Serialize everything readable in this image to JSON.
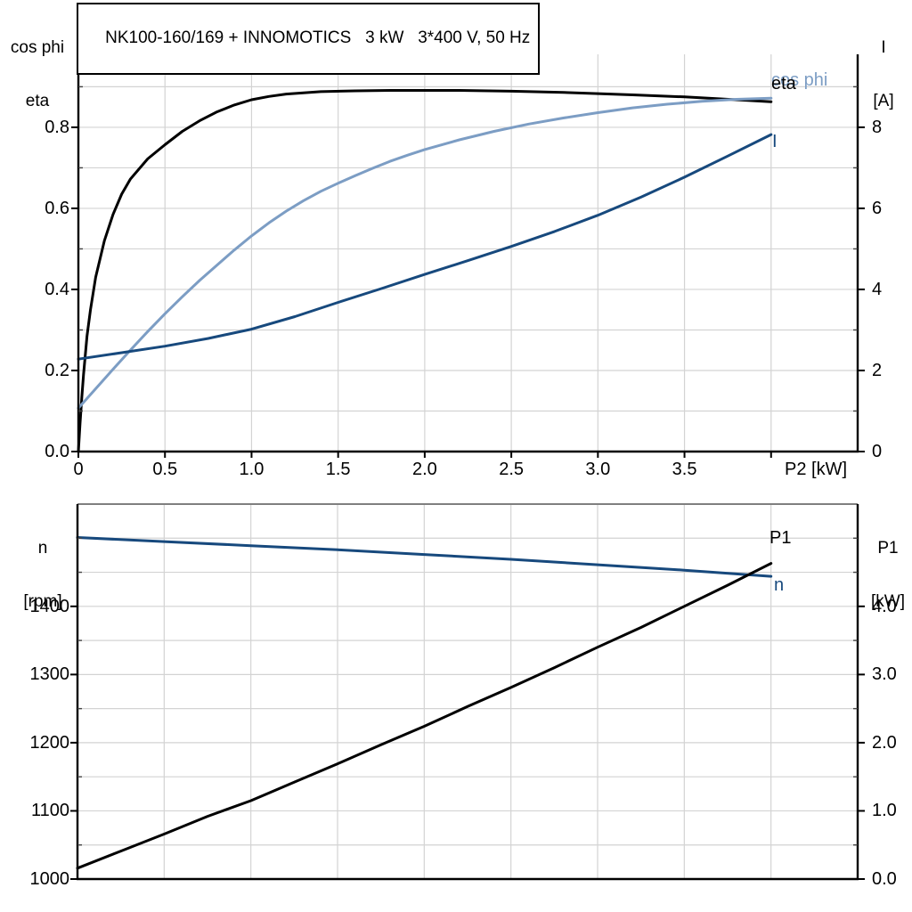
{
  "title": "NK100-160/169 + INNOMOTICS   3 kW   3*400 V, 50 Hz",
  "colors": {
    "eta_curve": "#000000",
    "cos_phi_curve": "#7C9DC4",
    "current_curve": "#17497D",
    "speed_curve": "#17497D",
    "p1_curve": "#000000",
    "gridline": "#D3D3D3",
    "axis": "#000000",
    "bottom_chart_top_border": "#7F7F7F"
  },
  "chart_data": [
    {
      "id": "top",
      "type": "line",
      "title": "NK100-160/169 + INNOMOTICS   3 kW   3*400 V, 50 Hz",
      "xlabel": "P2 [kW]",
      "x": {
        "min": 0,
        "max": 4.5,
        "grid_step": 0.5,
        "show_ticks": true,
        "major_ticks": [
          {
            "v": 0,
            "label": "0"
          },
          {
            "v": 0.5,
            "label": "0.5"
          },
          {
            "v": 1.0,
            "label": "1.0"
          },
          {
            "v": 1.5,
            "label": "1.5"
          },
          {
            "v": 2.0,
            "label": "2.0"
          },
          {
            "v": 2.5,
            "label": "2.5"
          },
          {
            "v": 3.0,
            "label": "3.0"
          },
          {
            "v": 3.5,
            "label": "3.5"
          },
          {
            "v": 4.0,
            "label": ""
          }
        ]
      },
      "left_axis": {
        "unit_lines": [
          "cos phi",
          "eta"
        ],
        "min": 0,
        "max": 0.98,
        "grid_step": 0.1,
        "major_ticks": [
          {
            "v": 0.0,
            "label": "0.0"
          },
          {
            "v": 0.2,
            "label": "0.2"
          },
          {
            "v": 0.4,
            "label": "0.4"
          },
          {
            "v": 0.6,
            "label": "0.6"
          },
          {
            "v": 0.8,
            "label": "0.8"
          }
        ],
        "minor_ticks": [
          0.1,
          0.3,
          0.5,
          0.7,
          0.9
        ]
      },
      "right_axis": {
        "unit_lines": [
          "I",
          "[A]"
        ],
        "min": 0,
        "max": 9.8,
        "major_ticks": [
          {
            "v": 0,
            "label": "0"
          },
          {
            "v": 2,
            "label": "2"
          },
          {
            "v": 4,
            "label": "4"
          },
          {
            "v": 6,
            "label": "6"
          },
          {
            "v": 8,
            "label": "8"
          }
        ],
        "minor_ticks": [
          1,
          3,
          5,
          7,
          9
        ]
      },
      "series": [
        {
          "name": "eta",
          "label": "eta",
          "axis": "left",
          "color": "#000000",
          "points": [
            [
              0,
              0
            ],
            [
              0.01,
              0.07
            ],
            [
              0.02,
              0.135
            ],
            [
              0.03,
              0.19
            ],
            [
              0.05,
              0.285
            ],
            [
              0.07,
              0.35
            ],
            [
              0.1,
              0.43
            ],
            [
              0.15,
              0.52
            ],
            [
              0.2,
              0.585
            ],
            [
              0.25,
              0.635
            ],
            [
              0.3,
              0.672
            ],
            [
              0.4,
              0.722
            ],
            [
              0.5,
              0.757
            ],
            [
              0.6,
              0.79
            ],
            [
              0.7,
              0.816
            ],
            [
              0.8,
              0.838
            ],
            [
              0.9,
              0.855
            ],
            [
              1.0,
              0.868
            ],
            [
              1.1,
              0.876
            ],
            [
              1.2,
              0.882
            ],
            [
              1.4,
              0.888
            ],
            [
              1.6,
              0.89
            ],
            [
              1.8,
              0.891
            ],
            [
              2.0,
              0.891
            ],
            [
              2.2,
              0.891
            ],
            [
              2.5,
              0.889
            ],
            [
              2.8,
              0.886
            ],
            [
              3.0,
              0.883
            ],
            [
              3.2,
              0.88
            ],
            [
              3.5,
              0.875
            ],
            [
              3.8,
              0.868
            ],
            [
              4.0,
              0.863
            ]
          ]
        },
        {
          "name": "cos phi",
          "label": "cos phi",
          "axis": "left",
          "color": "#7C9DC4",
          "points": [
            [
              0,
              0.107
            ],
            [
              0.1,
              0.155
            ],
            [
              0.2,
              0.203
            ],
            [
              0.3,
              0.25
            ],
            [
              0.4,
              0.296
            ],
            [
              0.5,
              0.34
            ],
            [
              0.6,
              0.382
            ],
            [
              0.7,
              0.422
            ],
            [
              0.8,
              0.46
            ],
            [
              0.9,
              0.497
            ],
            [
              1.0,
              0.532
            ],
            [
              1.1,
              0.564
            ],
            [
              1.2,
              0.593
            ],
            [
              1.3,
              0.619
            ],
            [
              1.4,
              0.642
            ],
            [
              1.5,
              0.662
            ],
            [
              1.6,
              0.681
            ],
            [
              1.7,
              0.699
            ],
            [
              1.8,
              0.716
            ],
            [
              1.9,
              0.731
            ],
            [
              2.0,
              0.745
            ],
            [
              2.2,
              0.769
            ],
            [
              2.4,
              0.79
            ],
            [
              2.6,
              0.808
            ],
            [
              2.8,
              0.823
            ],
            [
              3.0,
              0.836
            ],
            [
              3.2,
              0.848
            ],
            [
              3.4,
              0.857
            ],
            [
              3.6,
              0.864
            ],
            [
              3.8,
              0.869
            ],
            [
              4.0,
              0.872
            ]
          ]
        },
        {
          "name": "I",
          "label": "I",
          "axis": "right",
          "color": "#17497D",
          "points": [
            [
              0,
              2.28
            ],
            [
              0.25,
              2.44
            ],
            [
              0.5,
              2.6
            ],
            [
              0.75,
              2.79
            ],
            [
              1.0,
              3.02
            ],
            [
              1.25,
              3.33
            ],
            [
              1.5,
              3.68
            ],
            [
              1.75,
              4.02
            ],
            [
              2.0,
              4.37
            ],
            [
              2.25,
              4.71
            ],
            [
              2.5,
              5.06
            ],
            [
              2.75,
              5.43
            ],
            [
              3.0,
              5.83
            ],
            [
              3.25,
              6.28
            ],
            [
              3.5,
              6.77
            ],
            [
              3.75,
              7.29
            ],
            [
              4.0,
              7.82
            ]
          ]
        }
      ]
    },
    {
      "id": "bottom",
      "type": "line",
      "title": "",
      "xlabel": "",
      "x": {
        "min": 0,
        "max": 4.5,
        "grid_step": 0.5,
        "show_ticks": false,
        "major_ticks": []
      },
      "left_axis": {
        "unit_lines": [
          "n",
          "[rpm]"
        ],
        "min": 1000,
        "max": 1550,
        "grid_step": 50,
        "major_ticks": [
          {
            "v": 1000,
            "label": "1000"
          },
          {
            "v": 1100,
            "label": "1100"
          },
          {
            "v": 1200,
            "label": "1200"
          },
          {
            "v": 1300,
            "label": "1300"
          },
          {
            "v": 1400,
            "label": "1400"
          }
        ],
        "minor_ticks": [
          1050,
          1150,
          1250,
          1350,
          1450,
          1500
        ]
      },
      "right_axis": {
        "unit_lines": [
          "P1",
          "[kW]"
        ],
        "min": 0,
        "max": 5.5,
        "major_ticks": [
          {
            "v": 0,
            "label": "0.0"
          },
          {
            "v": 1,
            "label": "1.0"
          },
          {
            "v": 2,
            "label": "2.0"
          },
          {
            "v": 3,
            "label": "3.0"
          },
          {
            "v": 4,
            "label": "4.0"
          }
        ],
        "minor_ticks": [
          0.5,
          1.5,
          2.5,
          3.5,
          4.5,
          5.0
        ]
      },
      "series": [
        {
          "name": "n",
          "label": "n",
          "axis": "left",
          "color": "#17497D",
          "points": [
            [
              0,
              1501
            ],
            [
              0.5,
              1495
            ],
            [
              1.0,
              1489
            ],
            [
              1.5,
              1483
            ],
            [
              2.0,
              1476
            ],
            [
              2.5,
              1469
            ],
            [
              3.0,
              1461
            ],
            [
              3.5,
              1453
            ],
            [
              4.0,
              1444
            ]
          ]
        },
        {
          "name": "P1",
          "label": "P1",
          "axis": "right",
          "color": "#000000",
          "points": [
            [
              0,
              0.16
            ],
            [
              0.25,
              0.41
            ],
            [
              0.5,
              0.66
            ],
            [
              0.75,
              0.92
            ],
            [
              1.0,
              1.15
            ],
            [
              1.25,
              1.42
            ],
            [
              1.5,
              1.69
            ],
            [
              1.75,
              1.97
            ],
            [
              2.0,
              2.24
            ],
            [
              2.25,
              2.53
            ],
            [
              2.5,
              2.81
            ],
            [
              2.75,
              3.1
            ],
            [
              3.0,
              3.4
            ],
            [
              3.25,
              3.69
            ],
            [
              3.5,
              4.0
            ],
            [
              3.75,
              4.31
            ],
            [
              4.0,
              4.63
            ]
          ]
        }
      ]
    }
  ]
}
